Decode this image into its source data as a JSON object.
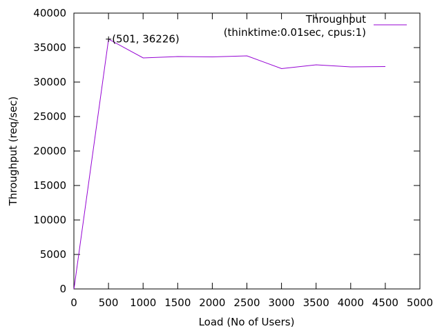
{
  "chart_data": {
    "type": "line",
    "title": "",
    "xlabel": "Load (No of Users)",
    "ylabel": "Throughput (req/sec)",
    "xlim": [
      0,
      5000
    ],
    "ylim": [
      0,
      40000
    ],
    "x_ticks": [
      0,
      500,
      1000,
      1500,
      2000,
      2500,
      3000,
      3500,
      4000,
      4500,
      5000
    ],
    "y_ticks": [
      0,
      5000,
      10000,
      15000,
      20000,
      25000,
      30000,
      35000,
      40000
    ],
    "grid": false,
    "legend": {
      "position": "top-right",
      "lines": [
        "Throughput",
        "(thinktime:0.01sec, cpus:1)"
      ]
    },
    "series": [
      {
        "name": "Throughput (thinktime:0.01sec, cpus:1)",
        "color": "#9400d3",
        "x": [
          1,
          501,
          1001,
          1501,
          2001,
          2501,
          3001,
          3501,
          4001,
          4501
        ],
        "y": [
          0,
          36226,
          33500,
          33700,
          33650,
          33800,
          31950,
          32500,
          32200,
          32250
        ]
      }
    ],
    "annotations": [
      {
        "x": 501,
        "y": 36226,
        "text": "(501, 36226)"
      }
    ]
  }
}
